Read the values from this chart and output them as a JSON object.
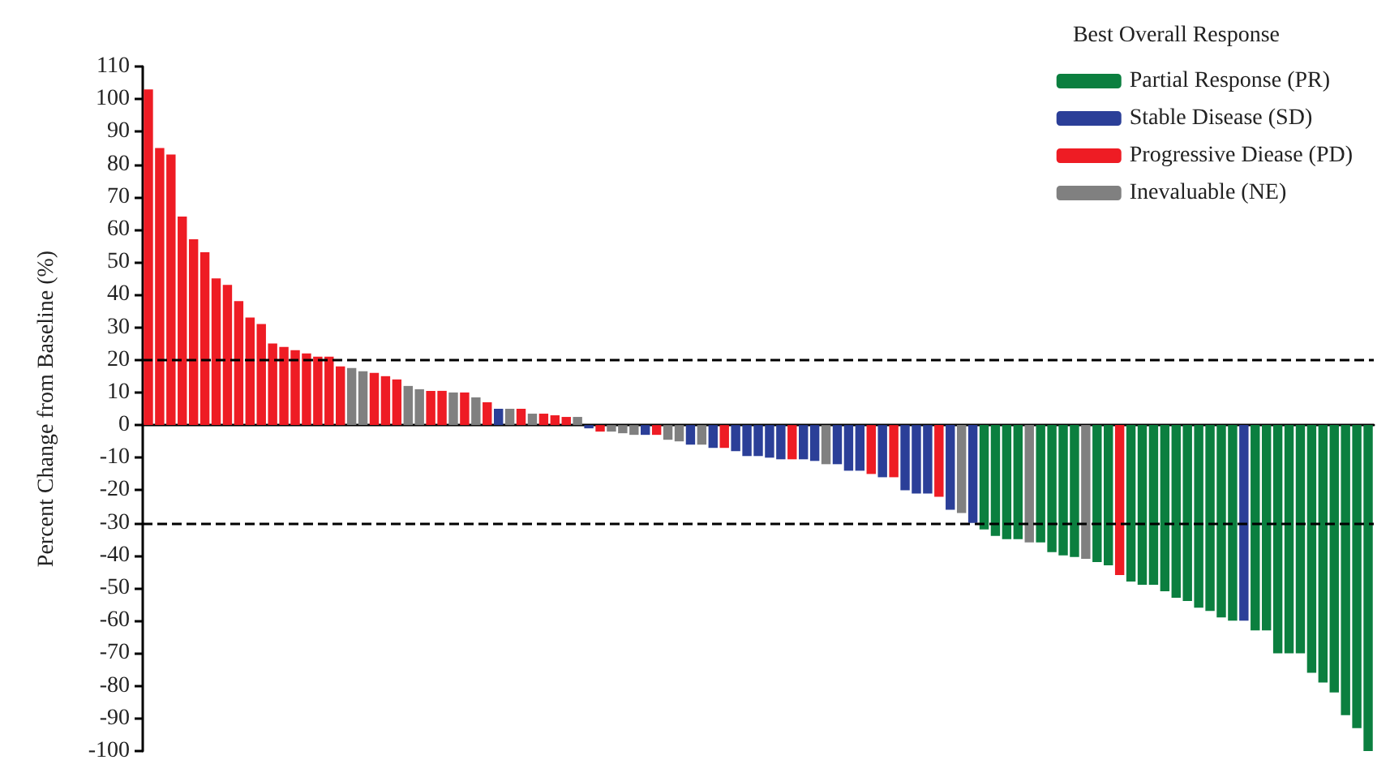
{
  "chart_data": {
    "type": "bar",
    "ylabel": "Percent Change from Baseline (%)",
    "legend_title": "Best Overall Response",
    "legend": "top right",
    "grid": false,
    "categories": [
      null,
      null,
      null,
      null,
      null,
      null,
      null,
      null,
      null,
      null,
      null,
      null,
      null,
      null,
      null,
      null,
      null,
      null,
      null,
      null,
      null,
      null,
      null,
      null,
      null,
      null,
      null,
      null,
      null,
      null,
      null,
      null,
      null,
      null,
      null,
      null,
      null,
      null,
      null,
      null,
      null,
      null,
      null,
      null,
      null,
      null,
      null,
      null,
      null,
      null,
      null,
      null,
      null,
      null,
      null,
      null,
      null,
      null,
      null,
      null,
      null,
      null,
      null,
      null,
      null,
      null,
      null,
      null,
      null,
      null,
      null,
      null,
      null,
      null,
      null,
      null,
      null,
      null,
      null,
      null,
      null,
      null,
      null,
      null,
      null,
      null,
      null,
      null,
      null,
      null,
      null,
      null,
      null,
      null,
      null,
      null,
      null,
      null,
      null,
      null,
      null,
      null,
      null,
      null,
      null,
      null,
      null,
      null,
      null
    ],
    "ylim": [
      -100,
      110
    ],
    "yticks": [
      -100,
      -90,
      -80,
      -70,
      -60,
      -50,
      -40,
      -30,
      -20,
      -10,
      0,
      10,
      20,
      30,
      40,
      50,
      60,
      70,
      80,
      90,
      100,
      110
    ],
    "ref_lines": [
      {
        "axis": "y",
        "value": 20,
        "color": "#000000",
        "line_style": "dashed"
      },
      {
        "axis": "y",
        "value": -30,
        "color": "#000000",
        "line_style": "dashed"
      }
    ],
    "series": [
      {
        "name": "Partial Response (PR)",
        "color": "#0b7f3f",
        "values": [
          null,
          null,
          null,
          null,
          null,
          null,
          null,
          null,
          null,
          null,
          null,
          null,
          null,
          null,
          null,
          null,
          null,
          null,
          null,
          null,
          null,
          null,
          null,
          null,
          null,
          null,
          null,
          null,
          null,
          null,
          null,
          null,
          null,
          null,
          null,
          null,
          null,
          null,
          null,
          null,
          null,
          null,
          null,
          null,
          null,
          null,
          null,
          null,
          null,
          null,
          null,
          null,
          null,
          null,
          null,
          null,
          null,
          null,
          null,
          null,
          null,
          null,
          null,
          null,
          null,
          null,
          null,
          null,
          null,
          null,
          null,
          null,
          null,
          null,
          -32,
          -34,
          -35,
          -35,
          null,
          -36,
          -39,
          -40,
          -40.5,
          null,
          -42,
          -43,
          null,
          -48,
          -49,
          -49,
          -51,
          -53,
          -54,
          -56,
          -57,
          -59,
          -60,
          null,
          -63,
          -63,
          -70,
          -70,
          -70,
          -76,
          -79,
          -82,
          -89,
          -93,
          -100
        ]
      },
      {
        "name": "Stable Disease (SD)",
        "color": "#2b3f98",
        "values": [
          null,
          null,
          null,
          null,
          null,
          null,
          null,
          null,
          null,
          null,
          null,
          null,
          null,
          null,
          null,
          null,
          null,
          null,
          null,
          null,
          null,
          null,
          null,
          null,
          null,
          null,
          null,
          null,
          null,
          null,
          null,
          5,
          null,
          null,
          null,
          null,
          null,
          null,
          null,
          -1,
          null,
          null,
          null,
          null,
          -3,
          null,
          null,
          null,
          -6,
          null,
          -7,
          null,
          -8,
          -9.5,
          -9.5,
          -10,
          -10.5,
          null,
          -10.5,
          -11,
          null,
          -12,
          -14,
          -14,
          null,
          -16,
          null,
          -20,
          -21,
          -21,
          null,
          -26,
          null,
          -30,
          null,
          null,
          null,
          null,
          null,
          null,
          null,
          null,
          null,
          null,
          null,
          null,
          null,
          null,
          null,
          null,
          null,
          null,
          null,
          null,
          null,
          null,
          null,
          -60,
          null,
          null,
          null,
          null,
          null,
          null,
          null,
          null,
          null,
          null,
          null
        ]
      },
      {
        "name": "Progressive Diease (PD)",
        "color": "#ee1c24",
        "values": [
          103,
          85,
          83,
          64,
          57,
          53,
          45,
          43,
          38,
          33,
          31,
          25,
          24,
          23,
          22,
          21,
          21,
          18,
          null,
          null,
          16,
          15,
          14,
          null,
          null,
          10.5,
          10.5,
          null,
          10,
          null,
          7,
          null,
          null,
          5,
          null,
          3.5,
          3,
          2.5,
          null,
          null,
          -2,
          null,
          null,
          null,
          null,
          -3,
          null,
          null,
          null,
          null,
          null,
          -7,
          null,
          null,
          null,
          null,
          null,
          -10.5,
          null,
          null,
          null,
          null,
          null,
          null,
          -15,
          null,
          -16,
          null,
          null,
          null,
          -22,
          null,
          null,
          null,
          null,
          null,
          null,
          null,
          null,
          null,
          null,
          null,
          null,
          null,
          null,
          null,
          -46,
          null,
          null,
          null,
          null,
          null,
          null,
          null,
          null,
          null,
          null,
          null,
          null,
          null,
          null,
          null,
          null,
          null,
          null,
          null,
          null,
          null,
          null
        ]
      },
      {
        "name": "Inevaluable (NE)",
        "color": "#808080",
        "values": [
          null,
          null,
          null,
          null,
          null,
          null,
          null,
          null,
          null,
          null,
          null,
          null,
          null,
          null,
          null,
          null,
          null,
          null,
          17.5,
          16.5,
          null,
          null,
          null,
          12,
          11,
          null,
          null,
          10,
          null,
          8.5,
          null,
          null,
          5,
          null,
          3.5,
          null,
          null,
          null,
          2.5,
          null,
          null,
          -2,
          -2.5,
          -3,
          null,
          null,
          -4.5,
          -5,
          null,
          -6,
          null,
          null,
          null,
          null,
          null,
          null,
          null,
          null,
          null,
          null,
          -12,
          null,
          null,
          null,
          null,
          null,
          null,
          null,
          null,
          null,
          null,
          null,
          -27,
          null,
          null,
          null,
          null,
          null,
          -36,
          null,
          null,
          null,
          null,
          -41,
          null,
          null,
          null,
          null,
          null,
          null,
          null,
          null,
          null,
          null,
          null,
          null,
          null,
          null,
          null,
          null,
          null,
          null,
          null,
          null,
          null,
          null,
          null,
          null,
          null
        ]
      }
    ]
  }
}
